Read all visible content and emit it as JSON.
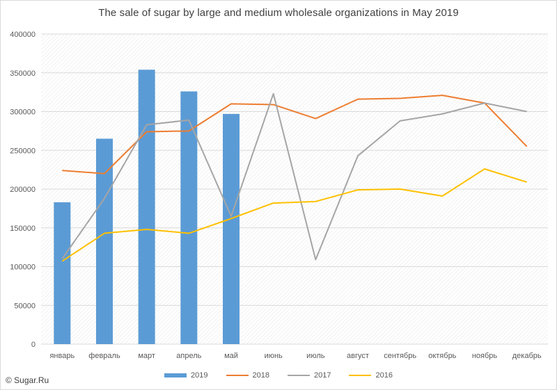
{
  "chart_data": {
    "type": "bar",
    "title": "The sale of sugar by large and medium wholesale organizations in May 2019",
    "categories": [
      "январь",
      "февраль",
      "март",
      "апрель",
      "май",
      "июнь",
      "июль",
      "август",
      "сентябрь",
      "октябрь",
      "ноябрь",
      "декабрь"
    ],
    "ylim": [
      0,
      400000
    ],
    "yticks": [
      0,
      50000,
      100000,
      150000,
      200000,
      250000,
      300000,
      350000,
      400000
    ],
    "grid": true,
    "legend_position": "bottom",
    "series": [
      {
        "name": "2019",
        "type": "bar",
        "color": "#5b9bd5",
        "values": [
          183000,
          265000,
          354000,
          326000,
          297000,
          null,
          null,
          null,
          null,
          null,
          null,
          null
        ]
      },
      {
        "name": "2018",
        "type": "line",
        "color": "#ed7d31",
        "values": [
          224000,
          220000,
          274000,
          275000,
          310000,
          309000,
          291000,
          316000,
          317000,
          321000,
          311000,
          255000
        ]
      },
      {
        "name": "2017",
        "type": "line",
        "color": "#a5a5a5",
        "values": [
          110000,
          188000,
          283000,
          289000,
          165000,
          323000,
          109000,
          243000,
          288000,
          297000,
          311000,
          300000
        ]
      },
      {
        "name": "2016",
        "type": "line",
        "color": "#ffc000",
        "values": [
          107000,
          143000,
          148000,
          143000,
          162000,
          182000,
          184000,
          199000,
          200000,
          191000,
          226000,
          209000
        ]
      }
    ]
  },
  "copyright": "© Sugar.Ru"
}
